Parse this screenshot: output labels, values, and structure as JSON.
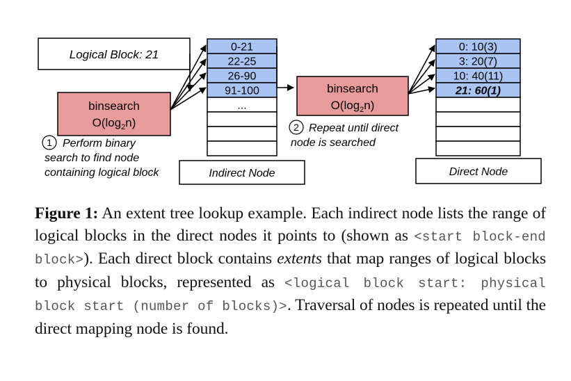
{
  "diagram": {
    "logical_block_label": "Logical Block: 21",
    "binsearch_label": "binsearch",
    "complexity_prefix": "O(log",
    "complexity_sub": "2",
    "complexity_suffix": "n)",
    "step1_number": "1",
    "step1_lines": [
      "Perform binary",
      "search to find node",
      "containing logical block"
    ],
    "step2_number": "2",
    "step2_lines": [
      "Repeat until direct",
      "node is searched"
    ],
    "indirect_node": {
      "title": "Indirect Node",
      "entries": [
        "0-21",
        "22-25",
        "26-90",
        "91-100",
        "...",
        "",
        "",
        ""
      ]
    },
    "direct_node": {
      "title": "Direct Node",
      "entries": [
        "0: 10(3)",
        "3: 20(7)",
        "10: 40(11)",
        "21: 60(1)",
        "",
        "",
        "",
        ""
      ]
    },
    "colors": {
      "entry_fill": "#a9c4f3",
      "binsearch_fill": "#e89b9b",
      "stroke": "#000000"
    }
  },
  "caption": {
    "label": "Figure 1:",
    "t1": " An extent tree lookup example. Each indirect node lists the range of logical blocks in the direct nodes it points to (shown as ",
    "code1": "<start block-end block>",
    "t2": "). Each direct block contains ",
    "em1": "extents",
    "t3": " that map ranges of logical blocks to physical blocks, represented as ",
    "code2": "<logical block start: physical block start (number of blocks)>",
    "t4": ". Traversal of nodes is repeated until the direct mapping node is found."
  }
}
